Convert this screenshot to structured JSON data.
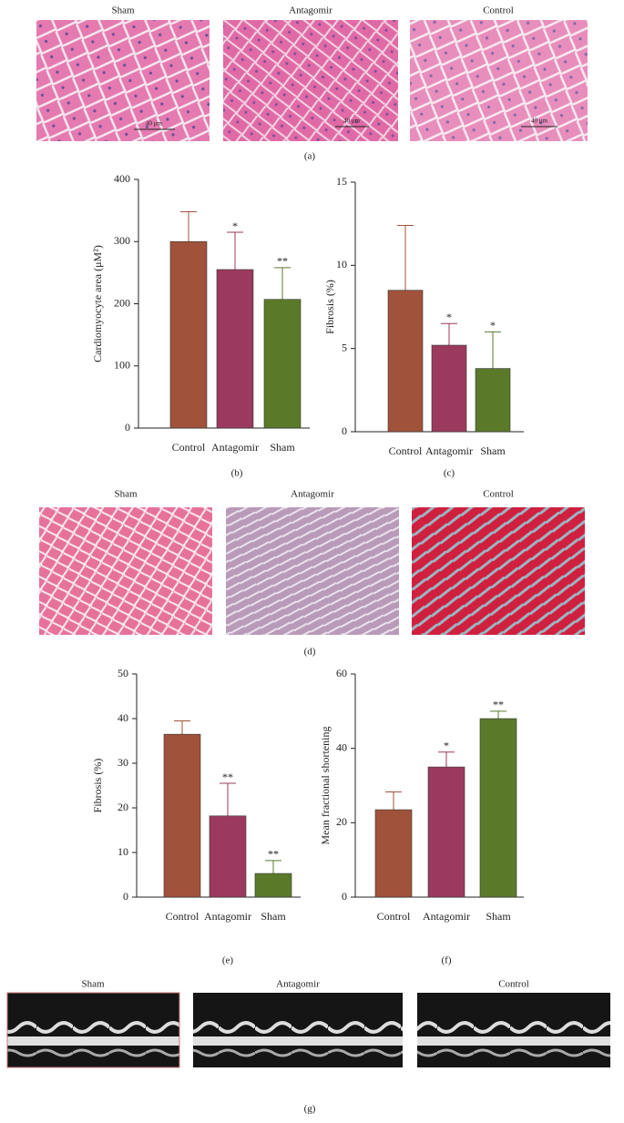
{
  "panels": {
    "a": {
      "label": "(a)",
      "titles": [
        "Sham",
        "Antagomir",
        "Control"
      ],
      "scale_labels": [
        "40 μm",
        "40 μm",
        "40 μm"
      ]
    },
    "d": {
      "label": "(d)",
      "titles": [
        "Sham",
        "Antagomir",
        "Control"
      ]
    },
    "g": {
      "label": "(g)",
      "titles": [
        "Sham",
        "Antagomir",
        "Control"
      ]
    }
  },
  "chart_data": [
    {
      "type": "bar",
      "label": "(b)",
      "ylabel": "Cardiomyocyte area (μM²)",
      "categories": [
        "Control",
        "Antagomir",
        "Sham"
      ],
      "values": [
        300,
        255,
        207
      ],
      "errors": [
        48,
        60,
        51
      ],
      "significance": [
        null,
        "*",
        "**"
      ],
      "colors": [
        "#a0523a",
        "#9b3a5e",
        "#5a7a2a"
      ],
      "ylim": [
        0,
        400
      ],
      "yticks": [
        0,
        100,
        200,
        300,
        400
      ]
    },
    {
      "type": "bar",
      "label": "(c)",
      "ylabel": "Fibrosis (%)",
      "categories": [
        "Control",
        "Antagomir",
        "Sham"
      ],
      "values": [
        8.5,
        5.2,
        3.8
      ],
      "errors": [
        3.9,
        1.3,
        2.2
      ],
      "significance": [
        null,
        "*",
        "*"
      ],
      "colors": [
        "#a0523a",
        "#9b3a5e",
        "#5a7a2a"
      ],
      "ylim": [
        0,
        15
      ],
      "yticks": [
        0,
        5,
        10,
        15
      ]
    },
    {
      "type": "bar",
      "label": "(e)",
      "ylabel": "Fibrosis (%)",
      "categories": [
        "Control",
        "Antagomir",
        "Sham"
      ],
      "values": [
        36.5,
        18.2,
        5.3
      ],
      "errors": [
        3,
        7.3,
        2.9
      ],
      "significance": [
        null,
        "**",
        "**"
      ],
      "colors": [
        "#a0523a",
        "#9b3a5e",
        "#5a7a2a"
      ],
      "ylim": [
        0,
        50
      ],
      "yticks": [
        0,
        10,
        20,
        30,
        40,
        50
      ]
    },
    {
      "type": "bar",
      "label": "(f)",
      "ylabel": "Mean fractional shortening",
      "categories": [
        "Control",
        "Antagomir",
        "Sham"
      ],
      "values": [
        23.5,
        35,
        48
      ],
      "errors": [
        4.8,
        4,
        2
      ],
      "significance": [
        null,
        "*",
        "**"
      ],
      "colors": [
        "#a0523a",
        "#9b3a5e",
        "#5a7a2a"
      ],
      "ylim": [
        0,
        60
      ],
      "yticks": [
        0,
        20,
        40,
        60
      ]
    }
  ]
}
